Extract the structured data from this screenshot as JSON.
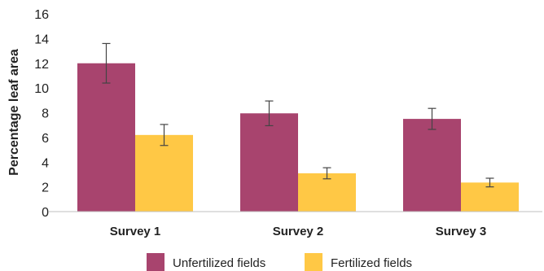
{
  "chart_data": {
    "type": "bar",
    "ylabel": "Percentage leaf area",
    "xlabel": "",
    "ylim": [
      0,
      16
    ],
    "yticks": [
      0,
      2,
      4,
      6,
      8,
      10,
      12,
      14,
      16
    ],
    "categories": [
      "Survey 1",
      "Survey 2",
      "Survey 3"
    ],
    "series": [
      {
        "name": "Unfertilized fields",
        "color": "#A8446E",
        "values": [
          12.0,
          7.95,
          7.5
        ],
        "errors": [
          1.6,
          1.0,
          0.85
        ]
      },
      {
        "name": "Fertilized fields",
        "color": "#FFC845",
        "values": [
          6.2,
          3.1,
          2.35
        ],
        "errors": [
          0.85,
          0.45,
          0.35
        ]
      }
    ],
    "grid": false,
    "legend_position": "bottom-center"
  }
}
